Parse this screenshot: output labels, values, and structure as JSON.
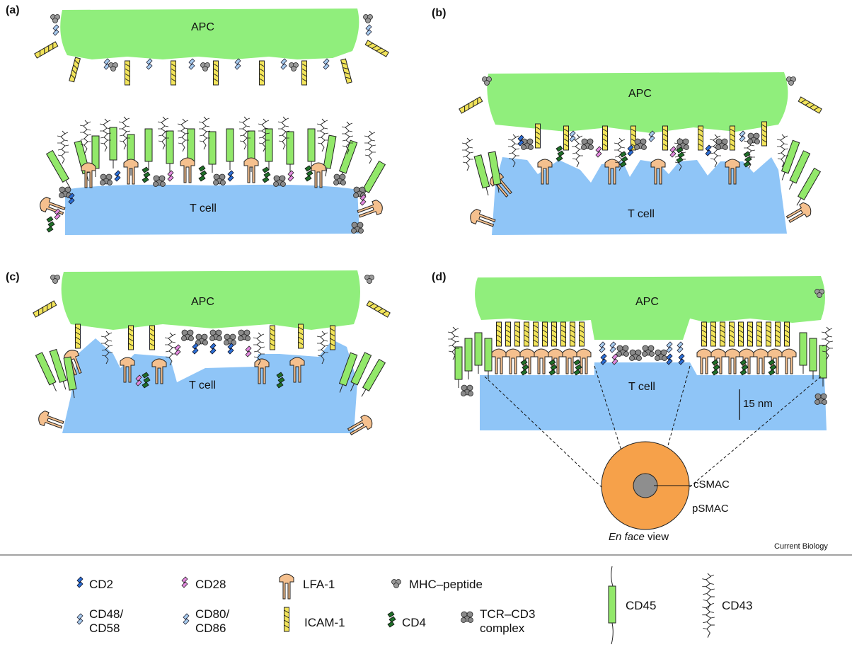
{
  "panels": [
    {
      "label": "(a)",
      "apc": "APC",
      "tcell": "T cell"
    },
    {
      "label": "(b)",
      "apc": "APC",
      "tcell": "T cell"
    },
    {
      "label": "(c)",
      "apc": "APC",
      "tcell": "T cell"
    },
    {
      "label": "(d)",
      "apc": "APC",
      "tcell": "T cell"
    }
  ],
  "scale_bar": "15 nm",
  "enface": {
    "csmac": "cSMAC",
    "psmac": "pSMAC",
    "view_italic": "En face",
    "view_rest": " view"
  },
  "credit": "Current Biology",
  "legend": {
    "cd2": "CD2",
    "cd28": "CD28",
    "lfa1": "LFA-1",
    "mhc": "MHC–peptide",
    "cd45": "CD45",
    "cd43": "CD43",
    "cd48_line1": "CD48/",
    "cd48_line2": "CD58",
    "cd80_line1": "CD80/",
    "cd80_line2": "CD86",
    "icam": "ICAM-1",
    "cd4": "CD4",
    "tcr_line1": "TCR–CD3",
    "tcr_line2": "complex"
  },
  "colors": {
    "apc": "#90ee7c",
    "tcell": "#8fc5f7",
    "cd45": "#92e86a",
    "lfa1": "#f5c08e",
    "icam": "#f2e45a",
    "cd2": "#2c6fd6",
    "cd28": "#e48ae0",
    "cd48": "#a9cdf0",
    "cd4": "#1f6e28",
    "tcr": "#8a8a8a",
    "psmac": "#f6a14a",
    "csmac": "#8e8e8e"
  }
}
